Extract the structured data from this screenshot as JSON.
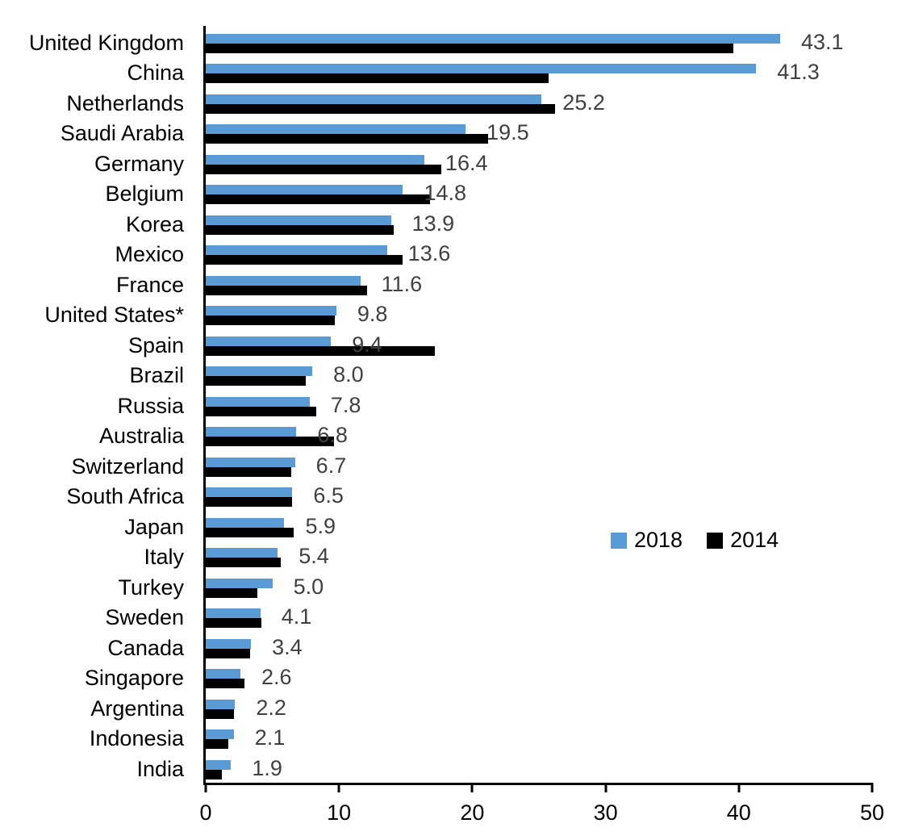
{
  "chart_data": {
    "type": "bar",
    "orientation": "horizontal",
    "title": "",
    "xlabel": "",
    "ylabel": "",
    "xlim": [
      0,
      50
    ],
    "x_ticks": [
      0,
      10,
      20,
      30,
      40,
      50
    ],
    "grid": "off",
    "background_color": "#ffffff",
    "axis_color": "#000000",
    "categories": [
      "United Kingdom",
      "China",
      "Netherlands",
      "Saudi Arabia",
      "Germany",
      "Belgium",
      "Korea",
      "Mexico",
      "France",
      "United States*",
      "Spain",
      "Brazil",
      "Russia",
      "Australia",
      "Switzerland",
      "South Africa",
      "Japan",
      "Italy",
      "Turkey",
      "Sweden",
      "Canada",
      "Singapore",
      "Argentina",
      "Indonesia",
      "India"
    ],
    "series": [
      {
        "name": "2018",
        "color": "#5B9BD5",
        "values": [
          43.1,
          41.3,
          25.2,
          19.5,
          16.4,
          14.8,
          13.9,
          13.6,
          11.6,
          9.8,
          9.4,
          8.0,
          7.8,
          6.8,
          6.7,
          6.5,
          5.9,
          5.4,
          5.0,
          4.1,
          3.4,
          2.6,
          2.2,
          2.1,
          1.9
        ]
      },
      {
        "name": "2014",
        "color": "#000000",
        "values": [
          39.6,
          25.7,
          26.2,
          21.2,
          17.7,
          16.8,
          14.1,
          14.8,
          12.1,
          9.7,
          17.2,
          7.5,
          8.3,
          9.6,
          6.4,
          6.5,
          6.6,
          5.6,
          3.9,
          4.2,
          3.3,
          2.9,
          2.1,
          1.7,
          1.2
        ]
      }
    ],
    "data_labels": {
      "series": "2018",
      "color": "#404040",
      "values": [
        "43.1",
        "41.3",
        "25.2",
        "19.5",
        "16.4",
        "14.8",
        "13.9",
        "13.6",
        "11.6",
        "9.8",
        "9.4",
        "8.0",
        "7.8",
        "6.8",
        "6.7",
        "6.5",
        "5.9",
        "5.4",
        "5.0",
        "4.1",
        "3.4",
        "2.6",
        "2.2",
        "2.1",
        "1.9"
      ]
    },
    "legend": {
      "position": "middle-right",
      "entries": [
        "2018",
        "2014"
      ]
    }
  }
}
